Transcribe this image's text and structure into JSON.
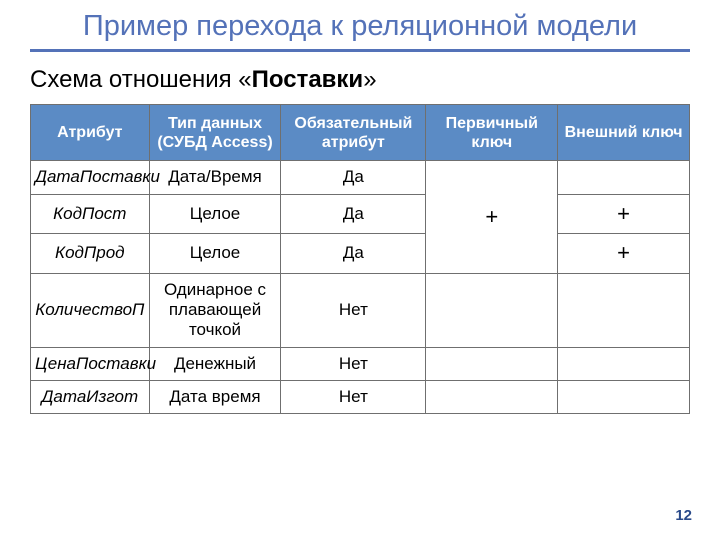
{
  "colors": {
    "title": "#5472b8",
    "underline": "#5472b8",
    "header_bg": "#5b8bc5",
    "header_text": "#ffffff",
    "border": "#6f6f6f",
    "text": "#000000",
    "pagenum": "#2a4a8a"
  },
  "title": "Пример перехода к реляционной модели",
  "subtitle_prefix": "Схема отношения «",
  "subtitle_bold": "Поставки",
  "subtitle_suffix": "»",
  "page_number": "12",
  "table": {
    "col_widths_pct": [
      18,
      20,
      22,
      20,
      20
    ],
    "merged_pk_rowspan": 3,
    "columns": [
      "Атрибут",
      "Тип данных (СУБД Access)",
      "Обязательный атрибут",
      "Первичный ключ",
      "Внешний ключ"
    ],
    "rows": [
      {
        "attr": "ДатаПоставки",
        "type": "Дата/Время",
        "required": "Да",
        "pk": "+",
        "fk": ""
      },
      {
        "attr": "КодПост",
        "type": "Целое",
        "required": "Да",
        "pk": "",
        "fk": "+"
      },
      {
        "attr": "КодПрод",
        "type": "Целое",
        "required": "Да",
        "pk": "",
        "fk": "+"
      },
      {
        "attr": "КоличествоП",
        "type": "Одинарное с плавающей точкой",
        "required": "Нет",
        "pk": "",
        "fk": ""
      },
      {
        "attr": "ЦенаПоставки",
        "type": "Денежный",
        "required": "Нет",
        "pk": "",
        "fk": ""
      },
      {
        "attr": "ДатаИзгот",
        "type": "Дата время",
        "required": "Нет",
        "pk": "",
        "fk": ""
      }
    ]
  }
}
